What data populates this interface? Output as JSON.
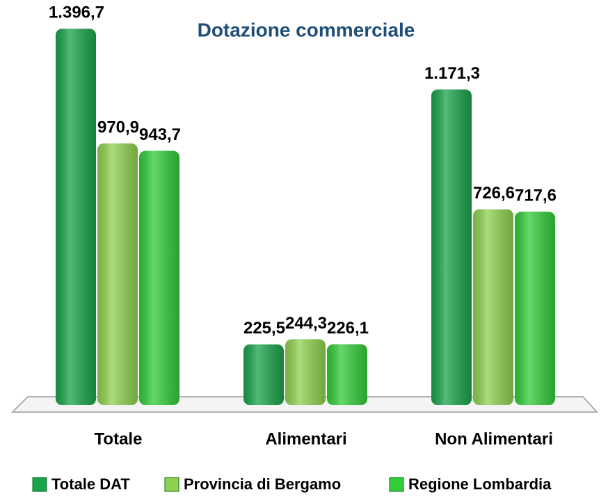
{
  "chart_data": {
    "type": "bar",
    "title": "Dotazione commerciale",
    "categories": [
      "Totale",
      "Alimentari",
      "Non Alimentari"
    ],
    "series": [
      {
        "name": "Totale DAT",
        "color": "#1aa34a",
        "values": [
          1396.7,
          225.5,
          1171.3
        ],
        "value_labels": [
          "1.396,7",
          "225,5",
          "1.171,3"
        ]
      },
      {
        "name": "Provincia di Bergamo",
        "color": "#8fd14f",
        "values": [
          970.9,
          244.3,
          726.6
        ],
        "value_labels": [
          "970,9",
          "244,3",
          "726,6"
        ]
      },
      {
        "name": "Regione Lombardia",
        "color": "#33cc3a",
        "values": [
          943.7,
          226.1,
          717.6
        ],
        "value_labels": [
          "943,7",
          "226,1",
          "717,6"
        ]
      }
    ],
    "ylim": [
      0,
      1400
    ]
  }
}
